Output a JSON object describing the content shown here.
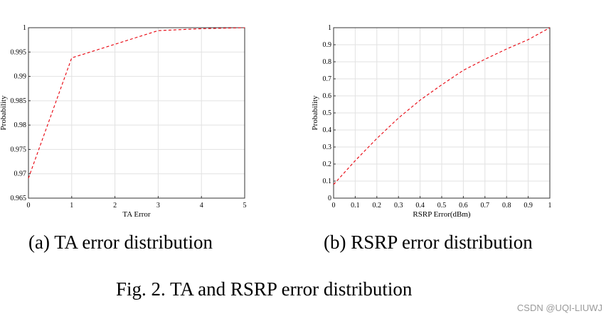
{
  "chart_data": [
    {
      "type": "line",
      "xlabel": "TA Error",
      "ylabel": "Probability",
      "xlim": [
        0,
        5
      ],
      "ylim": [
        0.965,
        1
      ],
      "xticks": [
        "0",
        "1",
        "2",
        "3",
        "4",
        "5"
      ],
      "yticks": [
        "0.965",
        "0.97",
        "0.975",
        "0.98",
        "0.985",
        "0.99",
        "0.995",
        "1"
      ],
      "grid": true,
      "line_color": "#e8000b",
      "line_style": "dashed",
      "x": [
        0,
        1,
        3,
        4,
        5
      ],
      "y": [
        0.9691,
        0.9938,
        0.9994,
        0.9998,
        1.0
      ]
    },
    {
      "type": "line",
      "xlabel": "RSRP Error(dBm)",
      "ylabel": "Probability",
      "xlim": [
        0,
        1
      ],
      "ylim": [
        0,
        1
      ],
      "xticks": [
        "0",
        "0.1",
        "0.2",
        "0.3",
        "0.4",
        "0.5",
        "0.6",
        "0.7",
        "0.8",
        "0.9",
        "1"
      ],
      "yticks": [
        "0",
        "0.1",
        "0.2",
        "0.3",
        "0.4",
        "0.5",
        "0.6",
        "0.7",
        "0.8",
        "0.9",
        "1"
      ],
      "grid": true,
      "line_color": "#e8000b",
      "line_style": "dashed",
      "x": [
        0,
        0.1,
        0.2,
        0.3,
        0.4,
        0.5,
        0.6,
        0.7,
        0.8,
        0.9,
        1
      ],
      "y": [
        0.08,
        0.22,
        0.35,
        0.47,
        0.575,
        0.665,
        0.75,
        0.815,
        0.875,
        0.93,
        1.0
      ]
    }
  ],
  "captions": {
    "a": "(a)  TA error distribution",
    "b": "(b)  RSRP error distribution",
    "figure": "Fig. 2.   TA and RSRP error distribution"
  },
  "watermark": "CSDN @UQI-LIUWJ"
}
